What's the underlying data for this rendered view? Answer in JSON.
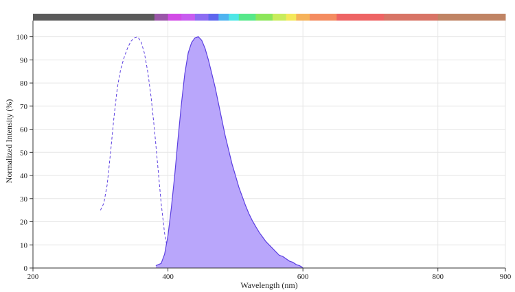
{
  "chart_data": {
    "type": "area",
    "xlabel": "Wavelength (nm)",
    "ylabel": "Normalized Intensity (%)",
    "xlim": [
      200,
      900
    ],
    "ylim": [
      0,
      107
    ],
    "x_ticks": [
      200,
      400,
      600,
      800,
      900
    ],
    "y_ticks": [
      0,
      10,
      20,
      30,
      40,
      50,
      60,
      70,
      80,
      90,
      100
    ],
    "grid": true,
    "spectrum_bar": {
      "segments": [
        {
          "from": 200,
          "to": 380,
          "color": "#5a5a5a"
        },
        {
          "from": 380,
          "to": 400,
          "color": "#9a56a8"
        },
        {
          "from": 400,
          "to": 420,
          "color": "#d24be6"
        },
        {
          "from": 420,
          "to": 440,
          "color": "#c85cf0"
        },
        {
          "from": 440,
          "to": 460,
          "color": "#8c6cf2"
        },
        {
          "from": 460,
          "to": 475,
          "color": "#5e66ee"
        },
        {
          "from": 475,
          "to": 490,
          "color": "#4fb4f0"
        },
        {
          "from": 490,
          "to": 505,
          "color": "#4ee6e6"
        },
        {
          "from": 505,
          "to": 530,
          "color": "#56e88a"
        },
        {
          "from": 530,
          "to": 555,
          "color": "#8ce65a"
        },
        {
          "from": 555,
          "to": 575,
          "color": "#c8ec5c"
        },
        {
          "from": 575,
          "to": 590,
          "color": "#f4e85a"
        },
        {
          "from": 590,
          "to": 610,
          "color": "#f6b25a"
        },
        {
          "from": 610,
          "to": 650,
          "color": "#f48c60"
        },
        {
          "from": 650,
          "to": 720,
          "color": "#ee6464"
        },
        {
          "from": 720,
          "to": 800,
          "color": "#d87466"
        },
        {
          "from": 800,
          "to": 900,
          "color": "#c08464"
        }
      ]
    },
    "series": [
      {
        "style": "dashed-line",
        "color": "#5b3fe0",
        "x": [
          300,
          305,
          310,
          315,
          320,
          325,
          330,
          335,
          340,
          345,
          350,
          355,
          360,
          365,
          370,
          375,
          380,
          385,
          390,
          395,
          400,
          405,
          410,
          415,
          420,
          425
        ],
        "y": [
          25,
          28,
          36,
          50,
          65,
          78,
          86,
          91,
          95,
          98,
          99.5,
          100,
          98,
          93,
          85,
          74,
          60,
          44,
          28,
          15,
          7,
          3,
          1.5,
          0.8,
          0.3,
          0
        ]
      },
      {
        "style": "filled-area",
        "color": "#5b3fe0",
        "fill": "#b9a6fb",
        "x": [
          382,
          390,
          395,
          400,
          405,
          410,
          415,
          420,
          425,
          430,
          435,
          440,
          445,
          450,
          455,
          460,
          465,
          470,
          475,
          480,
          485,
          490,
          495,
          500,
          505,
          510,
          515,
          520,
          525,
          530,
          535,
          540,
          545,
          550,
          555,
          560,
          565,
          570,
          575,
          580,
          585,
          590,
          595,
          598,
          600
        ],
        "y": [
          1,
          2,
          6,
          14,
          26,
          40,
          56,
          71,
          84,
          93,
          97.5,
          99.5,
          100,
          98.5,
          95,
          90,
          84,
          78,
          71,
          64,
          57,
          51,
          45,
          40,
          35,
          31,
          27,
          23.5,
          20.5,
          18,
          15.5,
          13.5,
          11.5,
          10,
          8.5,
          7,
          5.5,
          5,
          4,
          3,
          2.5,
          1.5,
          1,
          0.5,
          0
        ]
      }
    ]
  }
}
